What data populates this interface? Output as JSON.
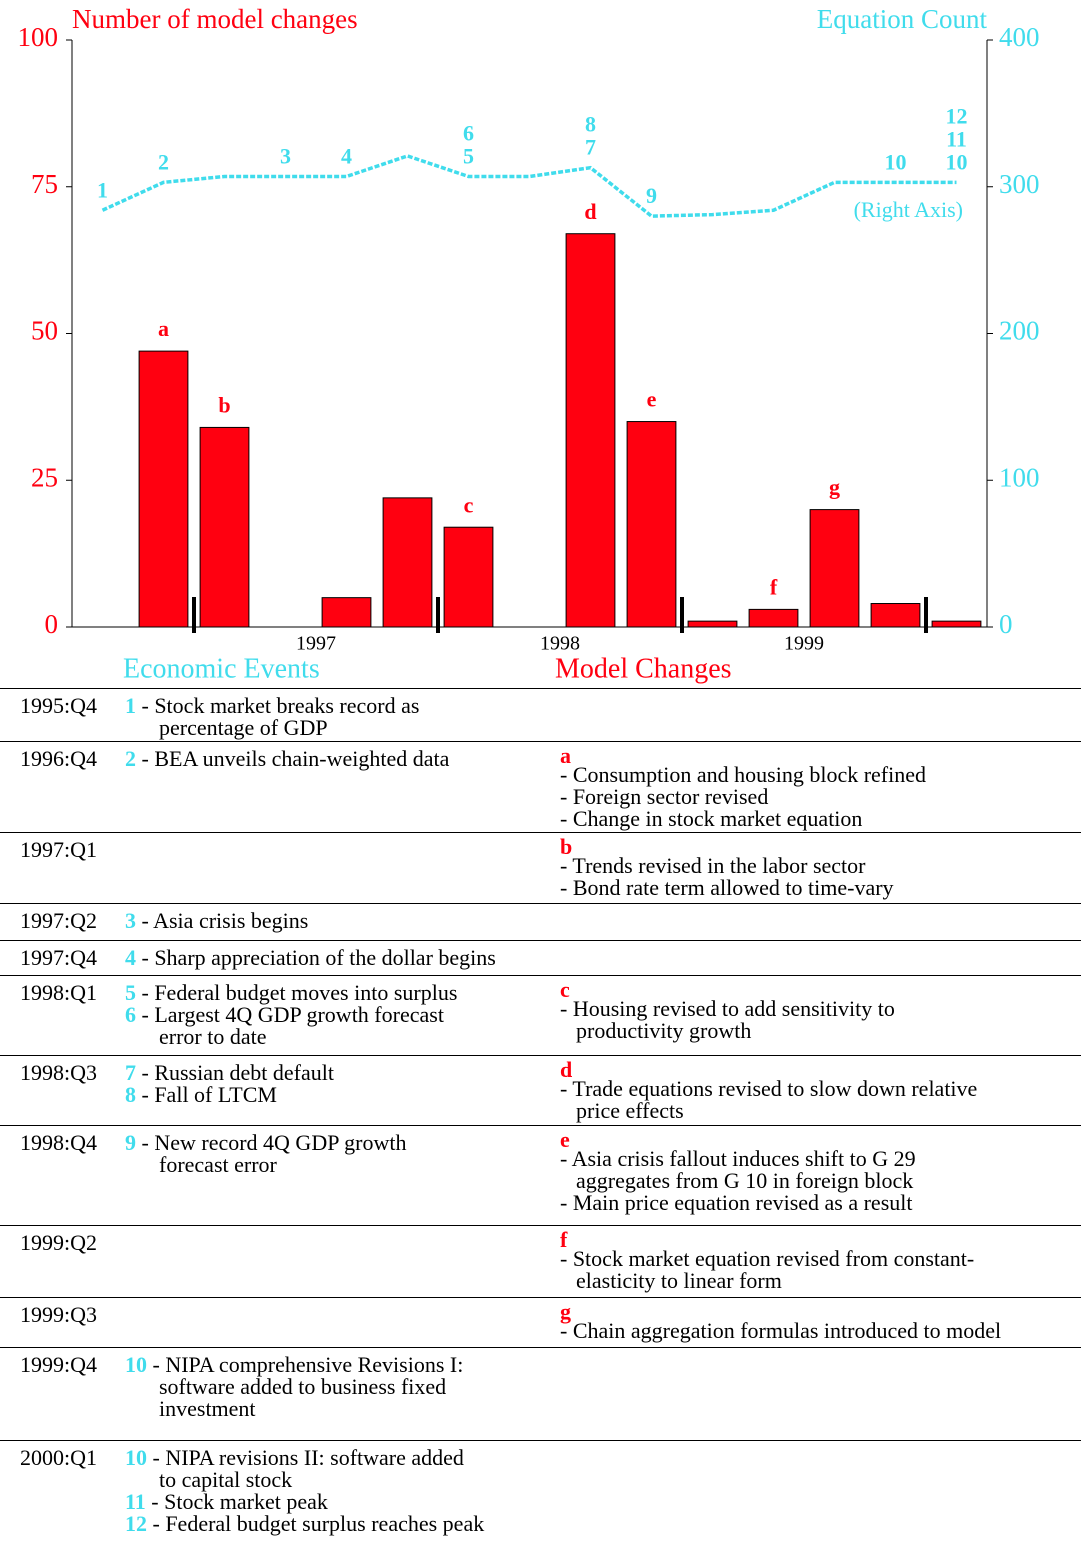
{
  "chart_data": {
    "type": "combo",
    "title_left": "Number of model changes",
    "title_right": "Equation Count",
    "annotation": "(Right Axis)",
    "categories": [
      null,
      null,
      null,
      null,
      null,
      null,
      null,
      null,
      null,
      null,
      null,
      null,
      null,
      null,
      null
    ],
    "x_labels": [
      "1997",
      "1998",
      "1999"
    ],
    "series": [
      {
        "type": "bar",
        "color": "#ff0010",
        "values": [
          0,
          47,
          34,
          0,
          5,
          22,
          17,
          0,
          67,
          35,
          1,
          3,
          20,
          4,
          1
        ],
        "labels": [
          null,
          [
            "a"
          ],
          [
            "b"
          ],
          null,
          null,
          null,
          [
            "c"
          ],
          null,
          [
            "d"
          ],
          [
            "e"
          ],
          null,
          [
            "f"
          ],
          [
            "g"
          ],
          null,
          null
        ]
      },
      {
        "type": "line",
        "axis": "y2",
        "color": "#40dcec",
        "values": [
          284,
          303,
          307,
          307,
          307,
          321,
          307,
          307,
          313,
          280,
          281,
          284,
          303,
          303,
          303
        ],
        "labels": [
          [
            "1"
          ],
          [
            "2"
          ],
          null,
          [
            "3"
          ],
          [
            "4"
          ],
          null,
          [
            "6",
            "5"
          ],
          null,
          [
            "8",
            "7"
          ],
          [
            "9"
          ],
          null,
          null,
          null,
          [
            "10"
          ],
          [
            "12",
            "11",
            "10"
          ]
        ]
      }
    ],
    "ylim": [
      0,
      100
    ],
    "yticks": [
      0,
      25,
      50,
      75,
      100
    ],
    "ycolor": "#ff0010",
    "y2lim": [
      0,
      400
    ],
    "y2ticks": [
      0,
      100,
      200,
      300,
      400
    ],
    "y2color": "#40dcec"
  },
  "headers": {
    "events": "Economic Events",
    "changes": "Model Changes"
  },
  "table": {
    "rows": [
      {
        "date": "1995:Q4",
        "events": [
          {
            "number": "1",
            "lines": [
              "- Stock market breaks record as",
              "percentage of GDP"
            ]
          }
        ],
        "changes": []
      },
      {
        "date": "1996:Q4",
        "events": [
          {
            "number": "2",
            "lines": [
              "- BEA unveils chain-weighted data"
            ]
          }
        ],
        "changes": [
          {
            "letter": "a",
            "lines": [
              "- Consumption and housing block refined",
              "- Foreign sector revised",
              "- Change in stock market equation"
            ]
          }
        ]
      },
      {
        "date": "1997:Q1",
        "events": [],
        "changes": [
          {
            "letter": "b",
            "lines": [
              "- Trends revised in the labor sector",
              "- Bond rate term allowed to time-vary"
            ]
          }
        ]
      },
      {
        "date": "1997:Q2",
        "events": [
          {
            "number": "3",
            "lines": [
              "- Asia crisis begins"
            ]
          }
        ],
        "changes": []
      },
      {
        "date": "1997:Q4",
        "events": [
          {
            "number": "4",
            "lines": [
              "- Sharp appreciation of the dollar begins"
            ]
          }
        ],
        "changes": []
      },
      {
        "date": "1998:Q1",
        "events": [
          {
            "number": "5",
            "lines": [
              "- Federal budget moves into surplus"
            ]
          },
          {
            "number": "6",
            "lines": [
              "- Largest 4Q GDP growth forecast",
              "error to date"
            ]
          }
        ],
        "changes": [
          {
            "letter": "c",
            "lines": [
              "- Housing revised to add sensitivity to",
              "productivity growth"
            ]
          }
        ]
      },
      {
        "date": "1998:Q3",
        "events": [
          {
            "number": "7",
            "lines": [
              "- Russian debt default"
            ]
          },
          {
            "number": "8",
            "lines": [
              "- Fall of LTCM"
            ]
          }
        ],
        "changes": [
          {
            "letter": "d",
            "lines": [
              "- Trade equations revised to slow down relative",
              "price effects"
            ]
          }
        ]
      },
      {
        "date": "1998:Q4",
        "events": [
          {
            "number": "9",
            "lines": [
              "- New record 4Q GDP growth",
              "forecast error"
            ]
          }
        ],
        "changes": [
          {
            "letter": "e",
            "lines": [
              "- Asia crisis fallout induces shift to G 29",
              "aggregates from G 10 in foreign block",
              "- Main price equation revised as a result"
            ]
          }
        ]
      },
      {
        "date": "1999:Q2",
        "events": [],
        "changes": [
          {
            "letter": "f",
            "lines": [
              "- Stock market equation revised from constant-",
              "elasticity to linear form"
            ]
          }
        ]
      },
      {
        "date": "1999:Q3",
        "events": [],
        "changes": [
          {
            "letter": "g",
            "lines": [
              "- Chain aggregation formulas introduced to model"
            ]
          }
        ]
      },
      {
        "date": "1999:Q4",
        "events": [
          {
            "number": "10",
            "lines": [
              "- NIPA comprehensive Revisions I:",
              "software added to business fixed",
              "investment"
            ]
          }
        ],
        "changes": []
      },
      {
        "date": "2000:Q1",
        "events": [
          {
            "number": "10",
            "lines": [
              "- NIPA revisions II: software added",
              "to capital stock"
            ]
          },
          {
            "number": "11",
            "lines": [
              "- Stock market peak"
            ]
          },
          {
            "number": "12",
            "lines": [
              "- Federal budget surplus reaches peak"
            ]
          }
        ],
        "changes": []
      }
    ]
  }
}
